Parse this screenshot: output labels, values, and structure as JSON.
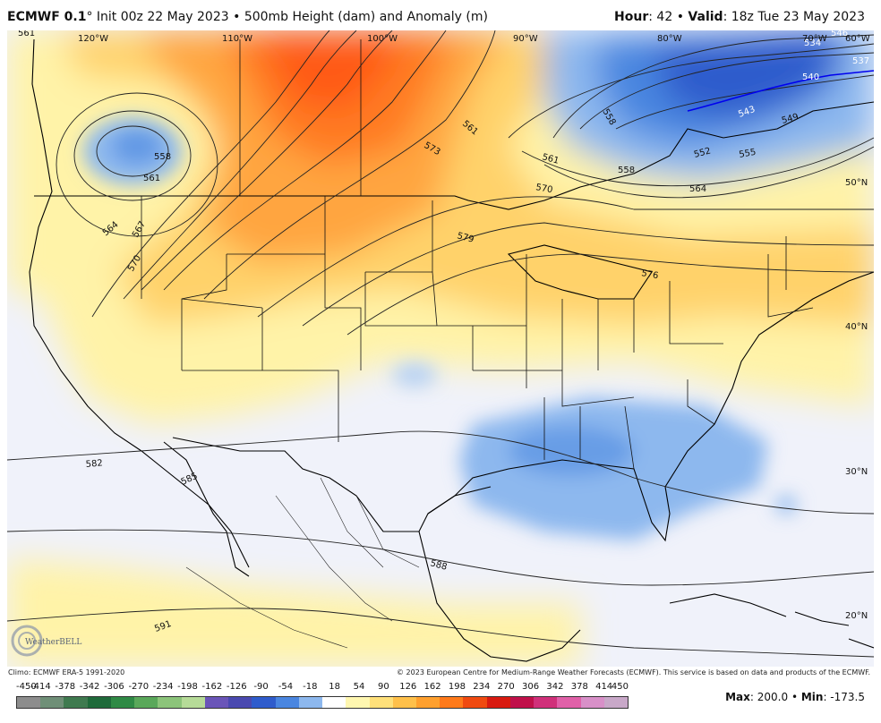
{
  "header": {
    "model": "ECMWF 0.1",
    "degree": "°",
    "init": "Init 00z 22 May 2023",
    "sep": "•",
    "product": "500mb Height (dam) and Anomaly (m)",
    "hour_label": "Hour",
    "hour_value": ": 42",
    "valid_label": "Valid",
    "valid_value": ": 18z Tue 23 May 2023"
  },
  "graticule": {
    "longitudes": [
      "120°W",
      "110°W",
      "100°W",
      "90°W",
      "80°W",
      "70°W",
      "60°W"
    ],
    "latitudes": [
      "50°N",
      "40°N",
      "30°N",
      "20°N"
    ]
  },
  "contour_labels": [
    "561",
    "558",
    "561",
    "564",
    "567",
    "570",
    "573",
    "561",
    "561",
    "570",
    "579",
    "576",
    "558",
    "558",
    "552",
    "555",
    "564",
    "549",
    "543",
    "540",
    "537",
    "534",
    "546",
    "582",
    "585",
    "588",
    "591"
  ],
  "footer": {
    "climo": "Climo: ECMWF ERA-5 1991-2020",
    "copyright": "© 2023 European Centre for Medium-Range Weather Forecasts (ECMWF). This service is based on data and products of the ECMWF."
  },
  "colorbar": {
    "ticks": [
      "-450",
      "-414",
      "-378",
      "-342",
      "-306",
      "-270",
      "-234",
      "-198",
      "-162",
      "-126",
      "-90",
      "-54",
      "-18",
      "18",
      "54",
      "90",
      "126",
      "162",
      "198",
      "234",
      "270",
      "306",
      "342",
      "378",
      "414",
      "450"
    ],
    "colors": [
      "#8d8d8d",
      "#6f8f77",
      "#3f7a4f",
      "#1f6a3a",
      "#2f8a45",
      "#5aa85a",
      "#8cc47a",
      "#b6db98",
      "#6a55b8",
      "#4a49b0",
      "#2f5ccc",
      "#4a86e0",
      "#8db8ee",
      "#ffffff",
      "#fff7b0",
      "#ffe07a",
      "#ffc04a",
      "#ffa02e",
      "#ff7a1a",
      "#f04a10",
      "#d81a10",
      "#c0104a",
      "#d0307a",
      "#e060a8",
      "#d890c8",
      "#c8a8c8"
    ]
  },
  "stats": {
    "max_label": "Max",
    "max_value": ": 200.0",
    "sep": "•",
    "min_label": "Min",
    "min_value": ": -173.5"
  },
  "logo": {
    "text": "WeatherBELL"
  }
}
